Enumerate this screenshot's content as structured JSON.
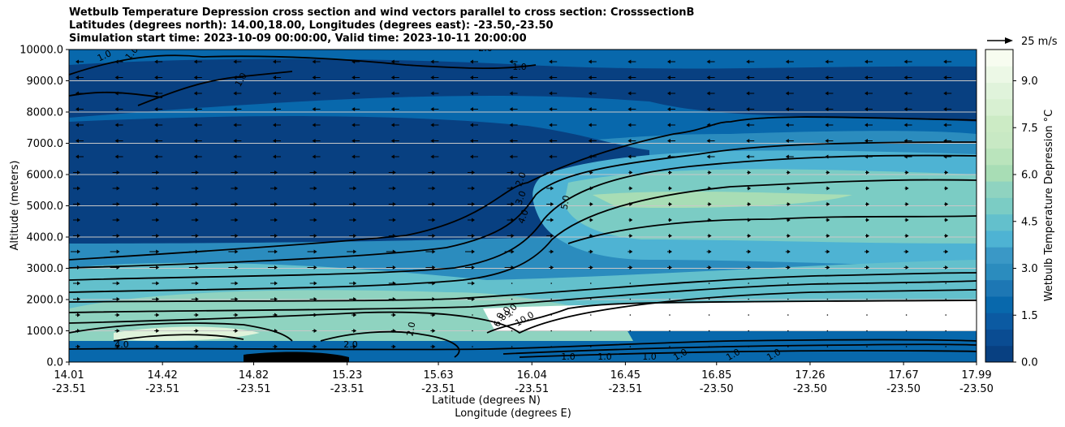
{
  "chart_data": {
    "type": "heatmap",
    "title_lines": [
      "Wetbulb Temperature Depression cross section and wind vectors parallel to cross section: CrosssectionB",
      "Latitudes (degrees north): 14.00,18.00, Longitudes (degrees east): -23.50,-23.50",
      "Simulation start time: 2023-10-09 00:00:00, Valid time: 2023-10-11 20:00:00"
    ],
    "xlabel_lines": [
      "Latitude (degrees N)",
      "Longitude (degrees E)"
    ],
    "ylabel": "Altitude (meters)",
    "ylim": [
      0,
      10000
    ],
    "y_ticks": [
      "0.0",
      "1000.0",
      "2000.0",
      "3000.0",
      "4000.0",
      "5000.0",
      "6000.0",
      "7000.0",
      "8000.0",
      "9000.0",
      "10000.0"
    ],
    "x_ticks": [
      {
        "lat": "14.01",
        "lon": "-23.51"
      },
      {
        "lat": "14.42",
        "lon": "-23.51"
      },
      {
        "lat": "14.82",
        "lon": "-23.51"
      },
      {
        "lat": "15.23",
        "lon": "-23.51"
      },
      {
        "lat": "15.63",
        "lon": "-23.51"
      },
      {
        "lat": "16.04",
        "lon": "-23.51"
      },
      {
        "lat": "16.45",
        "lon": "-23.51"
      },
      {
        "lat": "16.85",
        "lon": "-23.50"
      },
      {
        "lat": "17.26",
        "lon": "-23.50"
      },
      {
        "lat": "17.67",
        "lon": "-23.50"
      },
      {
        "lat": "17.99",
        "lon": "-23.50"
      }
    ],
    "grid": "horizontal",
    "colorbar": {
      "label": "Wetbulb Temperature Depression $^\\circ$C",
      "range": [
        0,
        10
      ],
      "ticks": [
        "0.0",
        "1.5",
        "3.0",
        "4.5",
        "6.0",
        "7.5",
        "9.0"
      ],
      "colors_low_to_high": [
        "#084081",
        "#0a4c92",
        "#0b5aa2",
        "#0868ac",
        "#1d77b4",
        "#2b8cbe",
        "#3a98c6",
        "#4eb3d3",
        "#63c0cc",
        "#7bccc4",
        "#8fd3c0",
        "#a8ddb5",
        "#bae4bc",
        "#c8e9c4",
        "#ccebc5",
        "#d8f0d2",
        "#e0f3db",
        "#ecf8e6",
        "#f7fcf0"
      ]
    },
    "vector_key": "25 m/s",
    "contour_labels": [
      "1.0",
      "1.0",
      "1.0",
      "1.0",
      "2.0",
      "2.0",
      "3.0",
      "4.0",
      "5.0",
      "2.0",
      "6.0",
      "8.0",
      "9.0",
      "10.0",
      "1.0",
      "1.0",
      "1.0",
      "1.0",
      "1.0",
      "1.0",
      "2.0",
      "4.0"
    ]
  }
}
